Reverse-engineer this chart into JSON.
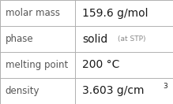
{
  "rows": [
    {
      "label": "molar mass",
      "value": "159.6 g/mol",
      "superscript": null,
      "small_text": null
    },
    {
      "label": "phase",
      "value": "solid",
      "superscript": null,
      "small_text": "(at STP)"
    },
    {
      "label": "melting point",
      "value": "200 °C",
      "superscript": null,
      "small_text": null
    },
    {
      "label": "density",
      "value": "3.603 g/cm",
      "superscript": "3",
      "small_text": null
    }
  ],
  "bg_color": "#ffffff",
  "border_color": "#b0b0b0",
  "label_color": "#555555",
  "value_color": "#1a1a1a",
  "small_text_color": "#888888",
  "label_fontsize": 8.5,
  "value_fontsize": 10,
  "small_fontsize": 6.5,
  "super_fontsize": 6.5,
  "col_split": 0.435
}
